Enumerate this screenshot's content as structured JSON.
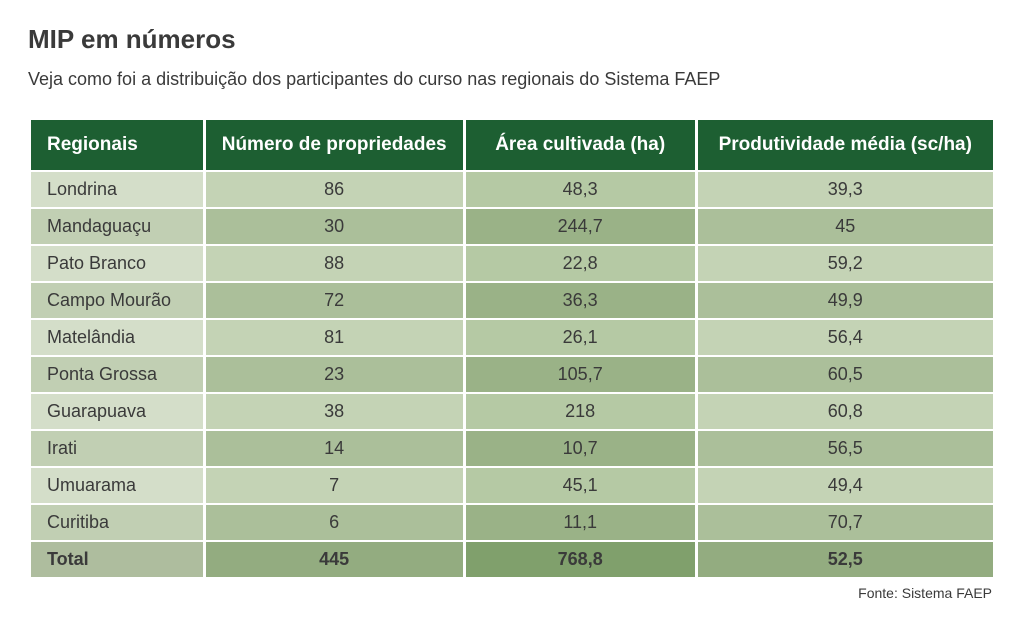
{
  "title": "MIP em números",
  "subtitle": "Veja como foi a distribuição dos participantes do curso nas regionais do Sistema FAEP",
  "source": "Fonte: Sistema FAEP",
  "table": {
    "header_bg": "#1d5f32",
    "header_fg": "#ffffff",
    "col_widths": [
      "18%",
      "27%",
      "24%",
      "31%"
    ],
    "row_colors_light": [
      "#d4dec9",
      "#c4d3b5",
      "#b5c9a4"
    ],
    "row_colors_dark": [
      "#c1cfb3",
      "#abbf9a",
      "#9ab287"
    ],
    "total_colors": [
      "#aebd9e",
      "#93ac80",
      "#80a06c"
    ],
    "columns": [
      "Regionais",
      "Número de propriedades",
      "Área cultivada (ha)",
      "Produtividade média (sc/ha)"
    ],
    "rows": [
      {
        "cells": [
          "Londrina",
          "86",
          "48,3",
          "39,3"
        ],
        "shade": "light"
      },
      {
        "cells": [
          "Mandaguaçu",
          "30",
          "244,7",
          "45"
        ],
        "shade": "dark"
      },
      {
        "cells": [
          "Pato Branco",
          "88",
          "22,8",
          "59,2"
        ],
        "shade": "light"
      },
      {
        "cells": [
          "Campo Mourão",
          "72",
          "36,3",
          "49,9"
        ],
        "shade": "dark"
      },
      {
        "cells": [
          "Matelândia",
          "81",
          "26,1",
          "56,4"
        ],
        "shade": "light"
      },
      {
        "cells": [
          "Ponta Grossa",
          "23",
          "105,7",
          "60,5"
        ],
        "shade": "dark"
      },
      {
        "cells": [
          "Guarapuava",
          "38",
          "218",
          "60,8"
        ],
        "shade": "light"
      },
      {
        "cells": [
          "Irati",
          "14",
          "10,7",
          "56,5"
        ],
        "shade": "dark"
      },
      {
        "cells": [
          "Umuarama",
          "7",
          "45,1",
          "49,4"
        ],
        "shade": "light"
      },
      {
        "cells": [
          "Curitiba",
          "6",
          "11,1",
          "70,7"
        ],
        "shade": "dark"
      }
    ],
    "total": {
      "cells": [
        "Total",
        "445",
        "768,8",
        "52,5"
      ]
    }
  }
}
